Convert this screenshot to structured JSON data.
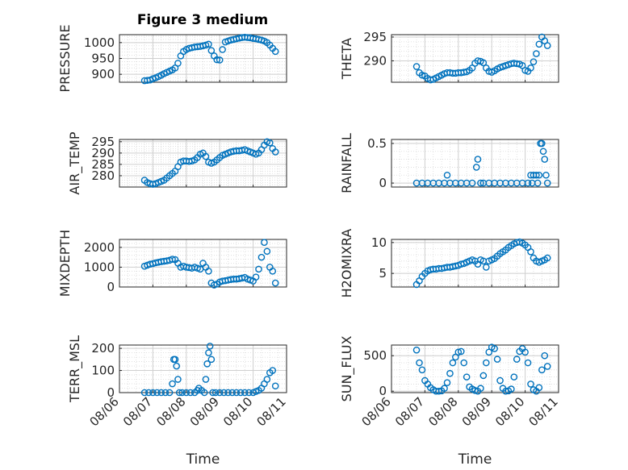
{
  "figure_title": "Figure 3 medium",
  "colors": {
    "marker": "#0072BD",
    "axis": "#262626",
    "grid": "#d9d9d9"
  },
  "chart_data": [
    {
      "type": "scatter",
      "ylabel": "PRESSURE",
      "xlabel": "",
      "xlim": [
        "08/06",
        "08/11"
      ],
      "ylim": [
        875,
        1025
      ],
      "yticks": [
        900,
        950,
        1000
      ],
      "xticks": [],
      "grid": true,
      "x": [
        "08/06 18:00",
        "08/06 20:00",
        "08/06 22:00",
        "08/07 00:00",
        "08/07 02:00",
        "08/07 04:00",
        "08/07 06:00",
        "08/07 08:00",
        "08/07 10:00",
        "08/07 12:00",
        "08/07 14:00",
        "08/07 16:00",
        "08/07 18:00",
        "08/07 20:00",
        "08/07 22:00",
        "08/08 00:00",
        "08/08 02:00",
        "08/08 04:00",
        "08/08 06:00",
        "08/08 08:00",
        "08/08 10:00",
        "08/08 12:00",
        "08/08 14:00",
        "08/08 16:00",
        "08/08 18:00",
        "08/08 20:00",
        "08/08 22:00",
        "08/09 00:00",
        "08/09 02:00",
        "08/09 04:00",
        "08/09 06:00",
        "08/09 08:00",
        "08/09 10:00",
        "08/09 12:00",
        "08/09 14:00",
        "08/09 16:00",
        "08/09 18:00",
        "08/09 20:00",
        "08/09 22:00",
        "08/10 00:00",
        "08/10 02:00",
        "08/10 04:00",
        "08/10 06:00",
        "08/10 08:00",
        "08/10 10:00",
        "08/10 12:00",
        "08/10 14:00",
        "08/10 16:00"
      ],
      "y": [
        880,
        881,
        882,
        886,
        889,
        893,
        897,
        902,
        906,
        910,
        914,
        920,
        935,
        958,
        972,
        978,
        982,
        984,
        986,
        987,
        988,
        990,
        992,
        995,
        975,
        958,
        946,
        945,
        978,
        1002,
        1005,
        1008,
        1010,
        1012,
        1014,
        1016,
        1017,
        1016,
        1015,
        1013,
        1012,
        1010,
        1008,
        1005,
        1000,
        992,
        982,
        972
      ]
    },
    {
      "type": "scatter",
      "ylabel": "THETA",
      "xlabel": "",
      "xlim": [
        "08/06",
        "08/11"
      ],
      "ylim": [
        285.5,
        295.5
      ],
      "yticks": [
        290,
        295
      ],
      "xticks": [],
      "grid": true,
      "x": [
        "08/06 18:00",
        "08/06 20:00",
        "08/06 22:00",
        "08/07 00:00",
        "08/07 02:00",
        "08/07 04:00",
        "08/07 06:00",
        "08/07 08:00",
        "08/07 10:00",
        "08/07 12:00",
        "08/07 14:00",
        "08/07 16:00",
        "08/07 18:00",
        "08/07 20:00",
        "08/07 22:00",
        "08/08 00:00",
        "08/08 02:00",
        "08/08 04:00",
        "08/08 06:00",
        "08/08 08:00",
        "08/08 10:00",
        "08/08 12:00",
        "08/08 14:00",
        "08/08 16:00",
        "08/08 18:00",
        "08/08 20:00",
        "08/08 22:00",
        "08/09 00:00",
        "08/09 02:00",
        "08/09 04:00",
        "08/09 06:00",
        "08/09 08:00",
        "08/09 10:00",
        "08/09 12:00",
        "08/09 14:00",
        "08/09 16:00",
        "08/09 18:00",
        "08/09 20:00",
        "08/09 22:00",
        "08/10 00:00",
        "08/10 02:00",
        "08/10 04:00",
        "08/10 06:00",
        "08/10 08:00",
        "08/10 10:00",
        "08/10 12:00",
        "08/10 14:00",
        "08/10 16:00"
      ],
      "y": [
        288.8,
        287.5,
        287.0,
        286.8,
        286.3,
        286.0,
        286.1,
        286.4,
        286.7,
        287.0,
        287.3,
        287.5,
        287.5,
        287.4,
        287.4,
        287.5,
        287.5,
        287.6,
        287.7,
        288.0,
        288.5,
        289.5,
        290.0,
        289.9,
        289.6,
        288.5,
        287.8,
        287.6,
        287.9,
        288.3,
        288.6,
        288.8,
        289.0,
        289.2,
        289.4,
        289.5,
        289.4,
        289.3,
        289.0,
        288.0,
        287.8,
        288.5,
        289.8,
        291.5,
        293.5,
        295.0,
        294.2,
        293.2
      ]
    },
    {
      "type": "scatter",
      "ylabel": "AIR_TEMP",
      "xlabel": "",
      "xlim": [
        "08/06",
        "08/11"
      ],
      "ylim": [
        275,
        296
      ],
      "yticks": [
        280,
        285,
        290,
        295
      ],
      "xticks": [],
      "grid": true,
      "x": [
        "08/06 18:00",
        "08/06 20:00",
        "08/06 22:00",
        "08/07 00:00",
        "08/07 02:00",
        "08/07 04:00",
        "08/07 06:00",
        "08/07 08:00",
        "08/07 10:00",
        "08/07 12:00",
        "08/07 14:00",
        "08/07 16:00",
        "08/07 18:00",
        "08/07 20:00",
        "08/07 22:00",
        "08/08 00:00",
        "08/08 02:00",
        "08/08 04:00",
        "08/08 06:00",
        "08/08 08:00",
        "08/08 10:00",
        "08/08 12:00",
        "08/08 14:00",
        "08/08 16:00",
        "08/08 18:00",
        "08/08 20:00",
        "08/08 22:00",
        "08/09 00:00",
        "08/09 02:00",
        "08/09 04:00",
        "08/09 06:00",
        "08/09 08:00",
        "08/09 10:00",
        "08/09 12:00",
        "08/09 14:00",
        "08/09 16:00",
        "08/09 18:00",
        "08/09 20:00",
        "08/09 22:00",
        "08/10 00:00",
        "08/10 02:00",
        "08/10 04:00",
        "08/10 06:00",
        "08/10 08:00",
        "08/10 10:00",
        "08/10 12:00",
        "08/10 14:00",
        "08/10 16:00"
      ],
      "y": [
        278.0,
        277.0,
        276.5,
        276.2,
        276.5,
        277.0,
        277.5,
        278.0,
        279.0,
        280.0,
        281.0,
        282.0,
        284.0,
        286.0,
        286.5,
        286.5,
        286.3,
        286.5,
        287.0,
        288.0,
        289.5,
        290.0,
        288.5,
        286.0,
        285.5,
        286.0,
        287.0,
        288.0,
        289.0,
        289.5,
        290.0,
        290.5,
        290.8,
        291.0,
        291.0,
        291.2,
        291.5,
        291.0,
        290.5,
        290.0,
        289.5,
        290.0,
        291.5,
        293.5,
        295.0,
        294.5,
        292.0,
        290.5
      ]
    },
    {
      "type": "scatter",
      "ylabel": "RAINFALL",
      "xlabel": "",
      "xlim": [
        "08/06",
        "08/11"
      ],
      "ylim": [
        -0.05,
        0.55
      ],
      "yticks": [
        0,
        0.5
      ],
      "xticks": [],
      "grid": true,
      "x": [
        "08/06 18:00",
        "08/06 22:00",
        "08/07 02:00",
        "08/07 06:00",
        "08/07 10:00",
        "08/07 14:00",
        "08/07 16:00",
        "08/07 18:00",
        "08/07 22:00",
        "08/08 02:00",
        "08/08 06:00",
        "08/08 10:00",
        "08/08 13:00",
        "08/08 14:00",
        "08/08 16:00",
        "08/08 18:00",
        "08/08 22:00",
        "08/09 02:00",
        "08/09 06:00",
        "08/09 10:00",
        "08/09 14:00",
        "08/09 18:00",
        "08/09 22:00",
        "08/10 02:00",
        "08/10 04:00",
        "08/10 05:00",
        "08/10 06:00",
        "08/10 08:00",
        "08/10 09:00",
        "08/10 10:00",
        "08/10 11:00",
        "08/10 12:00",
        "08/10 13:00",
        "08/10 14:00",
        "08/10 15:00",
        "08/10 16:00"
      ],
      "y": [
        0,
        0,
        0,
        0,
        0,
        0,
        0.1,
        0,
        0,
        0,
        0,
        0,
        0.2,
        0.3,
        0,
        0,
        0,
        0,
        0,
        0,
        0,
        0,
        0,
        0,
        0.1,
        0,
        0.1,
        0.1,
        0,
        0.1,
        0.5,
        0.5,
        0.4,
        0.3,
        0.1,
        0
      ]
    },
    {
      "type": "scatter",
      "ylabel": "MIXDEPTH",
      "xlabel": "",
      "xlim": [
        "08/06",
        "08/11"
      ],
      "ylim": [
        0,
        2400
      ],
      "yticks": [
        0,
        1000,
        2000
      ],
      "xticks": [],
      "grid": true,
      "x": [
        "08/06 18:00",
        "08/06 20:00",
        "08/06 22:00",
        "08/07 00:00",
        "08/07 02:00",
        "08/07 04:00",
        "08/07 06:00",
        "08/07 08:00",
        "08/07 10:00",
        "08/07 12:00",
        "08/07 14:00",
        "08/07 16:00",
        "08/07 18:00",
        "08/07 20:00",
        "08/07 22:00",
        "08/08 00:00",
        "08/08 02:00",
        "08/08 04:00",
        "08/08 06:00",
        "08/08 08:00",
        "08/08 10:00",
        "08/08 12:00",
        "08/08 14:00",
        "08/08 16:00",
        "08/08 18:00",
        "08/08 20:00",
        "08/08 22:00",
        "08/09 00:00",
        "08/09 02:00",
        "08/09 04:00",
        "08/09 06:00",
        "08/09 08:00",
        "08/09 10:00",
        "08/09 12:00",
        "08/09 14:00",
        "08/09 16:00",
        "08/09 18:00",
        "08/09 20:00",
        "08/09 22:00",
        "08/10 00:00",
        "08/10 02:00",
        "08/10 04:00",
        "08/10 06:00",
        "08/10 08:00",
        "08/10 10:00",
        "08/10 12:00",
        "08/10 14:00",
        "08/10 16:00"
      ],
      "y": [
        1050,
        1100,
        1150,
        1180,
        1220,
        1250,
        1280,
        1300,
        1320,
        1350,
        1400,
        1380,
        1200,
        1000,
        1050,
        1000,
        980,
        950,
        1000,
        950,
        900,
        1200,
        1000,
        800,
        200,
        100,
        150,
        250,
        300,
        320,
        350,
        380,
        400,
        400,
        420,
        450,
        480,
        400,
        350,
        300,
        500,
        900,
        1500,
        2250,
        1800,
        1000,
        800,
        200
      ]
    },
    {
      "type": "scatter",
      "ylabel": "H2OMIXRA",
      "xlabel": "",
      "xlim": [
        "08/06",
        "08/11"
      ],
      "ylim": [
        2.8,
        10.5
      ],
      "yticks": [
        5,
        10
      ],
      "xticks": [],
      "grid": true,
      "x": [
        "08/06 18:00",
        "08/06 20:00",
        "08/06 22:00",
        "08/07 00:00",
        "08/07 02:00",
        "08/07 04:00",
        "08/07 06:00",
        "08/07 08:00",
        "08/07 10:00",
        "08/07 12:00",
        "08/07 14:00",
        "08/07 16:00",
        "08/07 18:00",
        "08/07 20:00",
        "08/07 22:00",
        "08/08 00:00",
        "08/08 02:00",
        "08/08 04:00",
        "08/08 06:00",
        "08/08 08:00",
        "08/08 10:00",
        "08/08 12:00",
        "08/08 14:00",
        "08/08 16:00",
        "08/08 18:00",
        "08/08 20:00",
        "08/08 22:00",
        "08/09 00:00",
        "08/09 02:00",
        "08/09 04:00",
        "08/09 06:00",
        "08/09 08:00",
        "08/09 10:00",
        "08/09 12:00",
        "08/09 14:00",
        "08/09 16:00",
        "08/09 18:00",
        "08/09 20:00",
        "08/09 22:00",
        "08/10 00:00",
        "08/10 02:00",
        "08/10 04:00",
        "08/10 06:00",
        "08/10 08:00",
        "08/10 10:00",
        "08/10 12:00",
        "08/10 14:00",
        "08/10 16:00"
      ],
      "y": [
        3.2,
        3.8,
        4.5,
        5.0,
        5.4,
        5.6,
        5.7,
        5.7,
        5.8,
        5.8,
        5.9,
        6.0,
        6.0,
        6.1,
        6.2,
        6.3,
        6.5,
        6.6,
        6.8,
        7.0,
        7.2,
        7.0,
        6.5,
        7.2,
        7.0,
        6.0,
        7.0,
        7.2,
        7.4,
        7.8,
        8.2,
        8.5,
        8.8,
        9.2,
        9.5,
        9.8,
        10.0,
        10.1,
        9.9,
        9.6,
        9.2,
        8.5,
        7.5,
        7.0,
        6.8,
        7.0,
        7.2,
        7.5
      ]
    },
    {
      "type": "scatter",
      "ylabel": "TERR_MSL",
      "xlabel": "Time",
      "xlim": [
        "08/06",
        "08/11"
      ],
      "ylim": [
        0,
        215
      ],
      "yticks": [
        0,
        100,
        200
      ],
      "grid": true,
      "xticks": [
        "08/06",
        "08/07",
        "08/08",
        "08/09",
        "08/10",
        "08/11"
      ],
      "x": [
        "08/06 18:00",
        "08/06 21:00",
        "08/07 00:00",
        "08/07 03:00",
        "08/07 06:00",
        "08/07 09:00",
        "08/07 12:00",
        "08/07 14:00",
        "08/07 15:00",
        "08/07 16:00",
        "08/07 17:00",
        "08/07 18:00",
        "08/07 19:00",
        "08/07 21:00",
        "08/08 00:00",
        "08/08 03:00",
        "08/08 06:00",
        "08/08 08:00",
        "08/08 09:00",
        "08/08 11:00",
        "08/08 13:00",
        "08/08 14:00",
        "08/08 15:00",
        "08/08 16:00",
        "08/08 17:00",
        "08/08 18:00",
        "08/08 19:00",
        "08/08 21:00",
        "08/09 00:00",
        "08/09 03:00",
        "08/09 06:00",
        "08/09 09:00",
        "08/09 12:00",
        "08/09 15:00",
        "08/09 18:00",
        "08/09 21:00",
        "08/10 00:00",
        "08/10 02:00",
        "08/10 04:00",
        "08/10 06:00",
        "08/10 08:00",
        "08/10 10:00",
        "08/10 12:00",
        "08/10 14:00",
        "08/10 16:00"
      ],
      "y": [
        0,
        0,
        0,
        0,
        0,
        0,
        0,
        40,
        150,
        150,
        120,
        60,
        0,
        0,
        0,
        0,
        0,
        10,
        20,
        10,
        0,
        60,
        130,
        180,
        210,
        150,
        0,
        0,
        0,
        0,
        0,
        0,
        0,
        0,
        0,
        0,
        0,
        5,
        10,
        20,
        40,
        60,
        90,
        100,
        30
      ]
    },
    {
      "type": "scatter",
      "ylabel": "SUN_FLUX",
      "xlabel": "Time",
      "xlim": [
        "08/06",
        "08/11"
      ],
      "ylim": [
        -20,
        650
      ],
      "yticks": [
        0,
        500
      ],
      "grid": true,
      "xticks": [
        "08/06",
        "08/07",
        "08/08",
        "08/09",
        "08/10",
        "08/11"
      ],
      "x": [
        "08/06 18:00",
        "08/06 20:00",
        "08/06 22:00",
        "08/07 00:00",
        "08/07 02:00",
        "08/07 04:00",
        "08/07 06:00",
        "08/07 08:00",
        "08/07 10:00",
        "08/07 12:00",
        "08/07 14:00",
        "08/07 16:00",
        "08/07 18:00",
        "08/07 20:00",
        "08/07 22:00",
        "08/08 00:00",
        "08/08 02:00",
        "08/08 04:00",
        "08/08 06:00",
        "08/08 08:00",
        "08/08 10:00",
        "08/08 12:00",
        "08/08 14:00",
        "08/08 16:00",
        "08/08 18:00",
        "08/08 20:00",
        "08/08 22:00",
        "08/09 00:00",
        "08/09 02:00",
        "08/09 04:00",
        "08/09 06:00",
        "08/09 08:00",
        "08/09 10:00",
        "08/09 12:00",
        "08/09 14:00",
        "08/09 16:00",
        "08/09 18:00",
        "08/09 20:00",
        "08/09 22:00",
        "08/10 00:00",
        "08/10 02:00",
        "08/10 04:00",
        "08/10 06:00",
        "08/10 08:00",
        "08/10 10:00",
        "08/10 12:00",
        "08/10 14:00",
        "08/10 16:00"
      ],
      "y": [
        580,
        400,
        300,
        150,
        100,
        50,
        20,
        0,
        0,
        5,
        40,
        120,
        250,
        400,
        480,
        550,
        560,
        400,
        200,
        60,
        30,
        10,
        0,
        40,
        220,
        400,
        550,
        620,
        600,
        450,
        150,
        40,
        0,
        5,
        30,
        200,
        450,
        560,
        600,
        550,
        400,
        100,
        20,
        0,
        50,
        300,
        500,
        350
      ]
    }
  ]
}
